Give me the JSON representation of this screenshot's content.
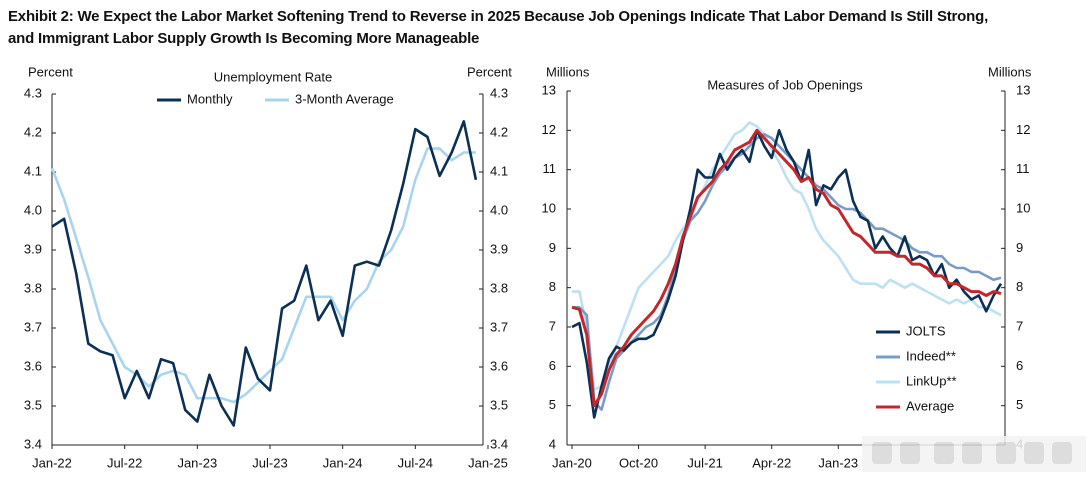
{
  "title": "Exhibit 2: We Expect the Labor Market Softening Trend to Reverse in 2025 Because Job Openings Indicate That Labor Demand Is Still Strong, and Immigrant Labor Supply Growth Is Becoming More Manageable",
  "chart_data": [
    {
      "type": "line",
      "title": "Unemployment Rate",
      "ylabel": "Percent",
      "y2label": "Percent",
      "legend": "top",
      "categories": [
        "Jan-22",
        null,
        null,
        null,
        null,
        null,
        "Jul-22",
        null,
        null,
        null,
        null,
        null,
        "Jan-23",
        null,
        null,
        null,
        null,
        null,
        "Jul-23",
        null,
        null,
        null,
        null,
        null,
        "Jan-24",
        null,
        null,
        null,
        null,
        null,
        "Jul-24",
        null,
        null,
        null,
        null,
        null,
        "Jan-25"
      ],
      "ylim": [
        3.4,
        4.3
      ],
      "yticks": [
        3.4,
        3.5,
        3.6,
        3.7,
        3.8,
        3.9,
        {
          "value": 4,
          "label": "4.0"
        },
        4.1,
        4.2,
        4.3
      ],
      "series": [
        {
          "name": "Monthly",
          "color": "#0b2f55",
          "values": [
            3.96,
            3.98,
            3.84,
            3.66,
            3.64,
            3.63,
            3.52,
            3.59,
            3.52,
            3.62,
            3.61,
            3.49,
            3.46,
            3.58,
            3.5,
            3.45,
            3.65,
            3.57,
            3.54,
            3.75,
            3.77,
            3.86,
            3.72,
            3.77,
            3.68,
            3.86,
            3.87,
            3.86,
            3.95,
            4.07,
            4.21,
            4.19,
            4.09,
            4.15,
            4.23,
            4.08,
            null
          ]
        },
        {
          "name": "3-Month Average",
          "color": "#a8d4ee",
          "values": [
            4.11,
            4.03,
            3.93,
            3.83,
            3.72,
            3.66,
            3.6,
            3.58,
            3.55,
            3.58,
            3.59,
            3.58,
            3.52,
            3.52,
            3.52,
            3.51,
            3.53,
            3.56,
            3.59,
            3.62,
            3.7,
            3.78,
            3.78,
            3.78,
            3.72,
            3.77,
            3.8,
            3.87,
            3.9,
            3.96,
            4.08,
            4.16,
            4.16,
            4.13,
            4.15,
            4.15,
            null
          ]
        }
      ]
    },
    {
      "type": "line",
      "title": "Measures of Job Openings",
      "ylabel": "Millions",
      "y2label": "Millions",
      "legend": "lower right",
      "categories": [
        "Jan-20",
        null,
        null,
        null,
        null,
        null,
        null,
        null,
        null,
        "Oct-20",
        null,
        null,
        null,
        null,
        null,
        null,
        null,
        null,
        "Jul-21",
        null,
        null,
        null,
        null,
        null,
        null,
        null,
        null,
        "Apr-22",
        null,
        null,
        null,
        null,
        null,
        null,
        null,
        null,
        "Jan-23",
        null,
        null,
        null,
        null,
        null,
        null,
        null,
        null,
        null,
        null,
        null,
        null,
        null,
        null,
        null,
        null,
        null,
        null,
        null,
        null,
        null,
        null
      ],
      "ylim": [
        4,
        13
      ],
      "yticks": [
        4,
        5,
        6,
        7,
        8,
        9,
        10,
        11,
        12,
        13
      ],
      "series": [
        {
          "name": "JOLTS",
          "color": "#0b2f55",
          "values": [
            7.0,
            7.1,
            6.1,
            4.7,
            5.5,
            6.2,
            6.5,
            6.4,
            6.6,
            6.7,
            6.7,
            6.8,
            7.2,
            7.7,
            8.3,
            9.2,
            10.0,
            11.0,
            10.8,
            10.8,
            11.4,
            11.0,
            11.3,
            11.5,
            11.2,
            12.0,
            11.6,
            11.3,
            12.0,
            11.5,
            11.2,
            10.7,
            11.5,
            10.1,
            10.6,
            10.5,
            10.8,
            11.0,
            10.2,
            9.8,
            9.7,
            9.0,
            9.3,
            9.0,
            8.8,
            9.3,
            8.7,
            8.8,
            8.7,
            8.3,
            8.6,
            8.0,
            8.2,
            7.9,
            7.7,
            7.8,
            7.4,
            7.8,
            8.1
          ]
        },
        {
          "name": "Indeed**",
          "color": "#7a9cc4",
          "values": [
            7.5,
            7.5,
            7.3,
            5.1,
            4.9,
            5.6,
            6.2,
            6.4,
            6.6,
            6.8,
            7.0,
            7.1,
            7.3,
            7.8,
            8.5,
            9.2,
            9.7,
            9.9,
            10.2,
            10.6,
            10.9,
            11.1,
            11.3,
            11.4,
            11.6,
            11.8,
            11.9,
            11.8,
            11.6,
            11.4,
            11.2,
            11.0,
            10.8,
            10.6,
            10.5,
            10.3,
            10.1,
            10.0,
            10.0,
            9.9,
            9.7,
            9.5,
            9.5,
            9.4,
            9.3,
            9.2,
            9.0,
            8.9,
            8.9,
            8.8,
            8.8,
            8.6,
            8.5,
            8.5,
            8.4,
            8.4,
            8.3,
            8.2,
            8.25
          ]
        },
        {
          "name": "LinkUp**",
          "color": "#bde0f2",
          "values": [
            7.9,
            7.9,
            7.0,
            5.4,
            5.5,
            6.0,
            6.5,
            7.0,
            7.5,
            8.0,
            8.2,
            8.4,
            8.6,
            8.8,
            9.2,
            9.5,
            9.7,
            10.2,
            10.6,
            11.0,
            11.3,
            11.6,
            11.9,
            12.0,
            12.2,
            12.1,
            11.9,
            11.5,
            11.2,
            10.8,
            10.5,
            10.4,
            10.0,
            9.5,
            9.2,
            9.0,
            8.8,
            8.5,
            8.2,
            8.1,
            8.1,
            8.1,
            8.0,
            8.2,
            8.1,
            8.0,
            8.1,
            8.0,
            7.9,
            7.8,
            7.7,
            7.6,
            7.7,
            7.6,
            7.7,
            7.5,
            7.5,
            7.4,
            7.3
          ]
        },
        {
          "name": "Average",
          "color": "#c0282d",
          "values": [
            7.5,
            7.45,
            6.8,
            5.0,
            5.3,
            5.9,
            6.3,
            6.5,
            6.8,
            7.0,
            7.2,
            7.4,
            7.7,
            8.1,
            8.6,
            9.3,
            9.8,
            10.3,
            10.5,
            10.7,
            11.0,
            11.2,
            11.5,
            11.6,
            11.7,
            12.0,
            11.8,
            11.6,
            11.4,
            11.2,
            11.0,
            10.7,
            10.8,
            10.5,
            10.4,
            10.1,
            10.0,
            9.7,
            9.4,
            9.3,
            9.1,
            8.9,
            8.9,
            8.9,
            8.8,
            8.8,
            8.6,
            8.6,
            8.5,
            8.3,
            8.3,
            8.1,
            8.1,
            8.0,
            7.9,
            7.9,
            7.8,
            7.9,
            7.85
          ]
        }
      ]
    }
  ]
}
